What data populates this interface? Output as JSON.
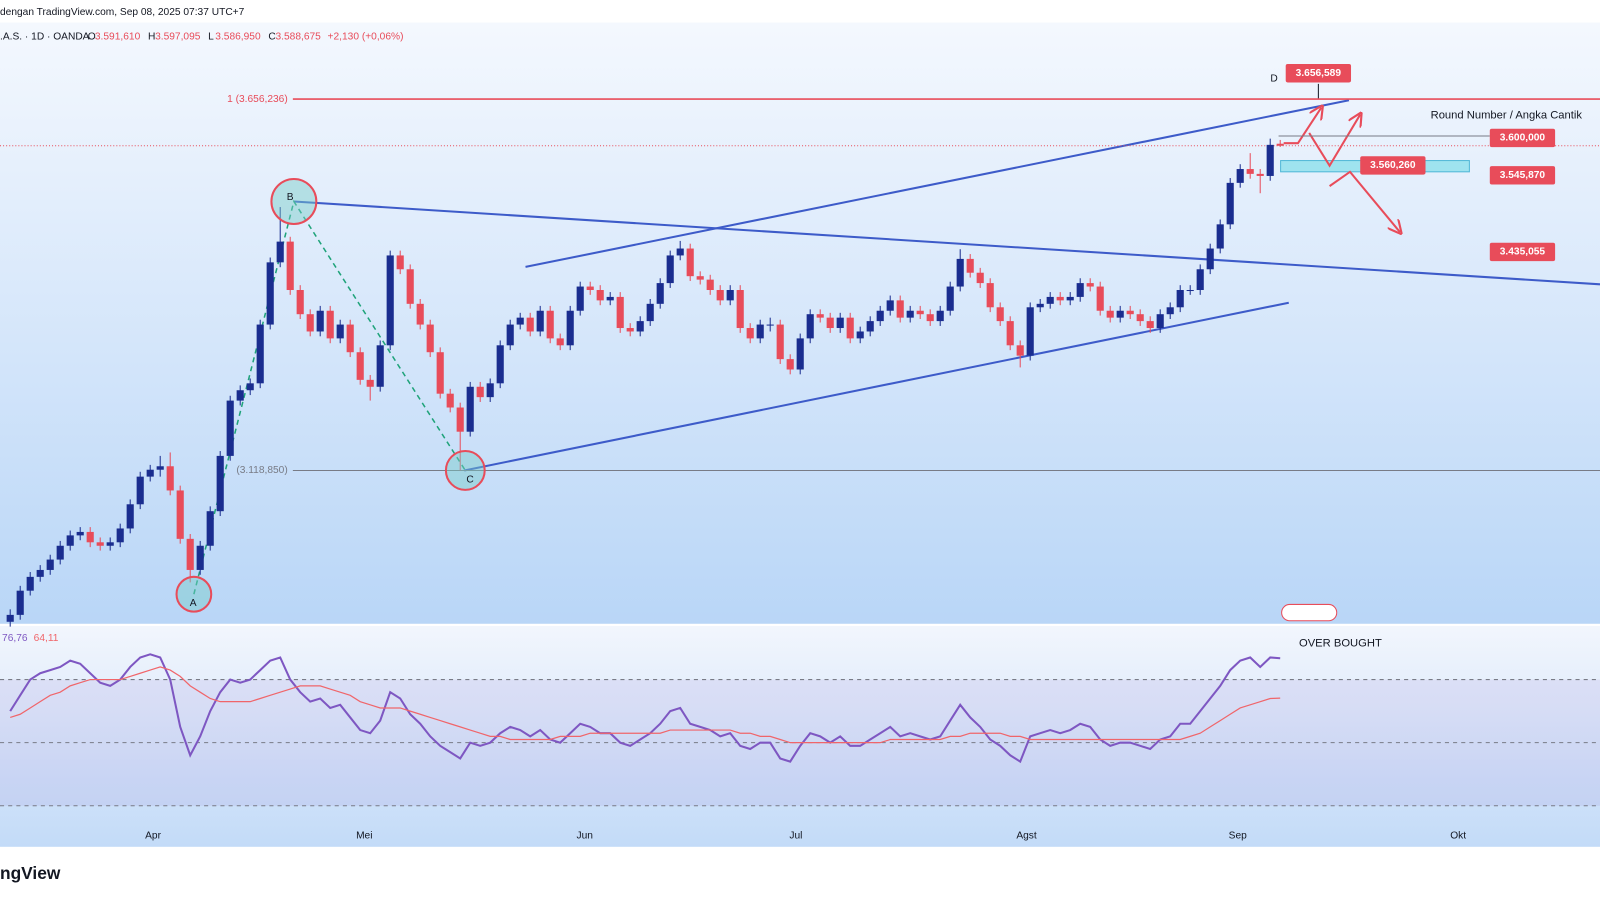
{
  "header": {
    "source": "dengan TradingView.com, Sep 08, 2025 07:37 UTC+7",
    "symbol": ".A.S. · 1D · OANDA",
    "ohlc": [
      {
        "key": "O",
        "text": "3.591,610"
      },
      {
        "key": "H",
        "text": "3.597,095"
      },
      {
        "key": "L",
        "text": "3.586,950"
      },
      {
        "key": "C",
        "text": "3.588,675"
      }
    ],
    "change": "+2,130 (+0,06%)"
  },
  "chart_data": {
    "type": "candlestick",
    "up_color": "#1a2d8f",
    "down_color": "#e84c5a",
    "ylim": [
      2897,
      3767
    ],
    "ohlc": [
      [
        2900,
        2918,
        2893,
        2910
      ],
      [
        2910,
        2952,
        2903,
        2945
      ],
      [
        2945,
        2972,
        2938,
        2965
      ],
      [
        2965,
        2982,
        2958,
        2975
      ],
      [
        2975,
        2997,
        2968,
        2990
      ],
      [
        2990,
        3017,
        2983,
        3010
      ],
      [
        3010,
        3032,
        3003,
        3025
      ],
      [
        3025,
        3037,
        3018,
        3030
      ],
      [
        3030,
        3037,
        3008,
        3015
      ],
      [
        3015,
        3022,
        3003,
        3010
      ],
      [
        3010,
        3022,
        3003,
        3015
      ],
      [
        3015,
        3042,
        3008,
        3035
      ],
      [
        3035,
        3077,
        3028,
        3070
      ],
      [
        3070,
        3117,
        3063,
        3110
      ],
      [
        3110,
        3127,
        3103,
        3120
      ],
      [
        3120,
        3140,
        3110,
        3125
      ],
      [
        3125,
        3145,
        3083,
        3090
      ],
      [
        3090,
        3097,
        3013,
        3020
      ],
      [
        3020,
        3027,
        2957,
        2975
      ],
      [
        2975,
        3017,
        2968,
        3010
      ],
      [
        3010,
        3067,
        3003,
        3060
      ],
      [
        3060,
        3147,
        3053,
        3140
      ],
      [
        3140,
        3227,
        3133,
        3220
      ],
      [
        3220,
        3242,
        3213,
        3235
      ],
      [
        3235,
        3252,
        3228,
        3245
      ],
      [
        3245,
        3337,
        3238,
        3330
      ],
      [
        3330,
        3427,
        3323,
        3420
      ],
      [
        3420,
        3500,
        3413,
        3450
      ],
      [
        3450,
        3457,
        3373,
        3380
      ],
      [
        3380,
        3387,
        3338,
        3345
      ],
      [
        3345,
        3352,
        3313,
        3320
      ],
      [
        3320,
        3357,
        3313,
        3350
      ],
      [
        3350,
        3357,
        3303,
        3310
      ],
      [
        3310,
        3337,
        3303,
        3330
      ],
      [
        3330,
        3337,
        3283,
        3290
      ],
      [
        3290,
        3297,
        3243,
        3250
      ],
      [
        3250,
        3257,
        3220,
        3240
      ],
      [
        3240,
        3307,
        3233,
        3300
      ],
      [
        3300,
        3437,
        3293,
        3430
      ],
      [
        3430,
        3437,
        3403,
        3410
      ],
      [
        3410,
        3417,
        3353,
        3360
      ],
      [
        3360,
        3367,
        3323,
        3330
      ],
      [
        3330,
        3337,
        3283,
        3290
      ],
      [
        3290,
        3297,
        3223,
        3230
      ],
      [
        3230,
        3237,
        3203,
        3210
      ],
      [
        3210,
        3217,
        3119,
        3175
      ],
      [
        3175,
        3247,
        3168,
        3240
      ],
      [
        3240,
        3247,
        3218,
        3225
      ],
      [
        3225,
        3252,
        3218,
        3245
      ],
      [
        3245,
        3307,
        3238,
        3300
      ],
      [
        3300,
        3337,
        3293,
        3330
      ],
      [
        3330,
        3347,
        3323,
        3340
      ],
      [
        3340,
        3347,
        3313,
        3320
      ],
      [
        3320,
        3357,
        3313,
        3350
      ],
      [
        3350,
        3357,
        3303,
        3310
      ],
      [
        3310,
        3317,
        3293,
        3300
      ],
      [
        3300,
        3357,
        3293,
        3350
      ],
      [
        3350,
        3392,
        3343,
        3385
      ],
      [
        3385,
        3392,
        3373,
        3380
      ],
      [
        3380,
        3387,
        3358,
        3365
      ],
      [
        3365,
        3377,
        3358,
        3370
      ],
      [
        3370,
        3377,
        3318,
        3325
      ],
      [
        3325,
        3332,
        3313,
        3320
      ],
      [
        3320,
        3342,
        3313,
        3335
      ],
      [
        3335,
        3367,
        3328,
        3360
      ],
      [
        3360,
        3397,
        3353,
        3390
      ],
      [
        3390,
        3437,
        3383,
        3430
      ],
      [
        3430,
        3451,
        3423,
        3440
      ],
      [
        3440,
        3447,
        3393,
        3400
      ],
      [
        3400,
        3407,
        3388,
        3395
      ],
      [
        3395,
        3402,
        3373,
        3380
      ],
      [
        3380,
        3387,
        3358,
        3365
      ],
      [
        3365,
        3387,
        3358,
        3380
      ],
      [
        3380,
        3387,
        3318,
        3325
      ],
      [
        3325,
        3332,
        3303,
        3310
      ],
      [
        3310,
        3337,
        3303,
        3330
      ],
      [
        3330,
        3340,
        3320,
        3330
      ],
      [
        3330,
        3337,
        3273,
        3280
      ],
      [
        3280,
        3287,
        3258,
        3265
      ],
      [
        3265,
        3317,
        3258,
        3310
      ],
      [
        3310,
        3352,
        3303,
        3345
      ],
      [
        3345,
        3352,
        3333,
        3340
      ],
      [
        3340,
        3347,
        3318,
        3325
      ],
      [
        3325,
        3347,
        3318,
        3340
      ],
      [
        3340,
        3347,
        3303,
        3310
      ],
      [
        3310,
        3327,
        3303,
        3320
      ],
      [
        3320,
        3342,
        3313,
        3335
      ],
      [
        3335,
        3357,
        3328,
        3350
      ],
      [
        3350,
        3372,
        3343,
        3365
      ],
      [
        3365,
        3372,
        3333,
        3340
      ],
      [
        3340,
        3357,
        3333,
        3350
      ],
      [
        3350,
        3357,
        3338,
        3345
      ],
      [
        3345,
        3352,
        3328,
        3335
      ],
      [
        3335,
        3357,
        3328,
        3350
      ],
      [
        3350,
        3392,
        3343,
        3385
      ],
      [
        3385,
        3439,
        3378,
        3425
      ],
      [
        3425,
        3432,
        3398,
        3405
      ],
      [
        3405,
        3412,
        3383,
        3390
      ],
      [
        3390,
        3397,
        3348,
        3355
      ],
      [
        3355,
        3362,
        3328,
        3335
      ],
      [
        3335,
        3342,
        3293,
        3300
      ],
      [
        3300,
        3307,
        3268,
        3285
      ],
      [
        3285,
        3362,
        3278,
        3355
      ],
      [
        3355,
        3367,
        3348,
        3360
      ],
      [
        3360,
        3377,
        3353,
        3370
      ],
      [
        3370,
        3377,
        3358,
        3365
      ],
      [
        3365,
        3377,
        3358,
        3370
      ],
      [
        3370,
        3397,
        3363,
        3390
      ],
      [
        3390,
        3397,
        3378,
        3385
      ],
      [
        3385,
        3392,
        3343,
        3350
      ],
      [
        3350,
        3357,
        3333,
        3340
      ],
      [
        3340,
        3357,
        3333,
        3350
      ],
      [
        3350,
        3357,
        3338,
        3345
      ],
      [
        3345,
        3352,
        3328,
        3335
      ],
      [
        3335,
        3342,
        3318,
        3325
      ],
      [
        3325,
        3352,
        3318,
        3345
      ],
      [
        3345,
        3362,
        3338,
        3355
      ],
      [
        3355,
        3387,
        3348,
        3380
      ],
      [
        3380,
        3387,
        3373,
        3380
      ],
      [
        3380,
        3417,
        3373,
        3410
      ],
      [
        3410,
        3447,
        3403,
        3440
      ],
      [
        3440,
        3482,
        3433,
        3475
      ],
      [
        3475,
        3542,
        3468,
        3535
      ],
      [
        3535,
        3562,
        3528,
        3555
      ],
      [
        3555,
        3578,
        3541,
        3548
      ],
      [
        3548,
        3555,
        3520,
        3545
      ],
      [
        3545,
        3599,
        3538,
        3590
      ],
      [
        3591.61,
        3597.095,
        3586.95,
        3588.675
      ]
    ],
    "months": [
      "Apr",
      "Mei",
      "Jun",
      "Jul",
      "Agst",
      "Sep",
      "Okt"
    ],
    "levels": [
      {
        "value": 3656.236,
        "label": "1 (3.656,236)",
        "color": "#e84c5a"
      },
      {
        "value": 3118.85,
        "label": "(3.118,850)",
        "color": "#787b86"
      }
    ],
    "price_labels": [
      {
        "value": 3656.589,
        "label": "3.656,589"
      },
      {
        "value": 3600,
        "label": "3.600,000"
      },
      {
        "value": 3560.26,
        "label": "3.560,260"
      },
      {
        "value": 3545.87,
        "label": "3.545,870"
      },
      {
        "value": 3435.055,
        "label": "3.435,055"
      }
    ],
    "points": [
      "A",
      "B",
      "C",
      "D"
    ],
    "annotations": [
      "Round Number / Angka Cantik",
      "OVER BOUGHT"
    ],
    "rsi": {
      "ylim": [
        17,
        87
      ],
      "levels": [
        70,
        50,
        30
      ],
      "series": [
        {
          "color": "#7e57c2",
          "last_label": "76,76",
          "values": [
            60,
            65,
            70,
            72,
            73,
            74,
            76,
            75,
            72,
            69,
            68,
            70,
            74,
            77,
            78,
            77,
            70,
            55,
            46,
            52,
            60,
            66,
            70,
            69,
            70,
            73,
            76,
            77,
            70,
            66,
            63,
            64,
            61,
            62,
            58,
            54,
            53,
            57,
            66,
            64,
            59,
            56,
            52,
            49,
            47,
            45,
            50,
            49,
            50,
            53,
            55,
            54,
            52,
            54,
            51,
            50,
            53,
            56,
            55,
            53,
            53,
            50,
            49,
            51,
            53,
            56,
            60,
            61,
            56,
            55,
            54,
            52,
            53,
            49,
            48,
            50,
            50,
            45,
            44,
            49,
            53,
            52,
            50,
            52,
            49,
            49,
            51,
            53,
            55,
            52,
            53,
            52,
            51,
            52,
            57,
            62,
            58,
            55,
            51,
            49,
            46,
            44,
            52,
            53,
            54,
            53,
            54,
            56,
            55,
            51,
            49,
            50,
            50,
            49,
            48,
            51,
            52,
            56,
            56,
            60,
            64,
            68,
            73,
            76,
            77,
            74,
            77,
            76.76
          ]
        },
        {
          "color": "#f0656a",
          "last_label": "64,11",
          "values": [
            58,
            59,
            61,
            63,
            65,
            66,
            68,
            69,
            70,
            70,
            70,
            70,
            71,
            72,
            73,
            74,
            73,
            71,
            68,
            66,
            64,
            63,
            63,
            63,
            63,
            64,
            65,
            66,
            67,
            68,
            68,
            68,
            67,
            66,
            65,
            63,
            62,
            61,
            61,
            61,
            60,
            59,
            58,
            57,
            56,
            55,
            54,
            53,
            52,
            52,
            51,
            51,
            51,
            51,
            51,
            52,
            52,
            52,
            53,
            53,
            53,
            53,
            53,
            53,
            53,
            53,
            54,
            54,
            54,
            54,
            54,
            54,
            54,
            53,
            53,
            52,
            52,
            51,
            50,
            50,
            50,
            50,
            50,
            50,
            50,
            50,
            50,
            50,
            51,
            51,
            51,
            51,
            51,
            51,
            52,
            52,
            53,
            53,
            53,
            53,
            52,
            52,
            51,
            51,
            51,
            51,
            51,
            51,
            51,
            51,
            51,
            51,
            51,
            51,
            51,
            51,
            51,
            51,
            52,
            53,
            55,
            57,
            59,
            61,
            62,
            63,
            64,
            64.11
          ]
        }
      ]
    }
  },
  "footer": {
    "logo": "ngView"
  }
}
